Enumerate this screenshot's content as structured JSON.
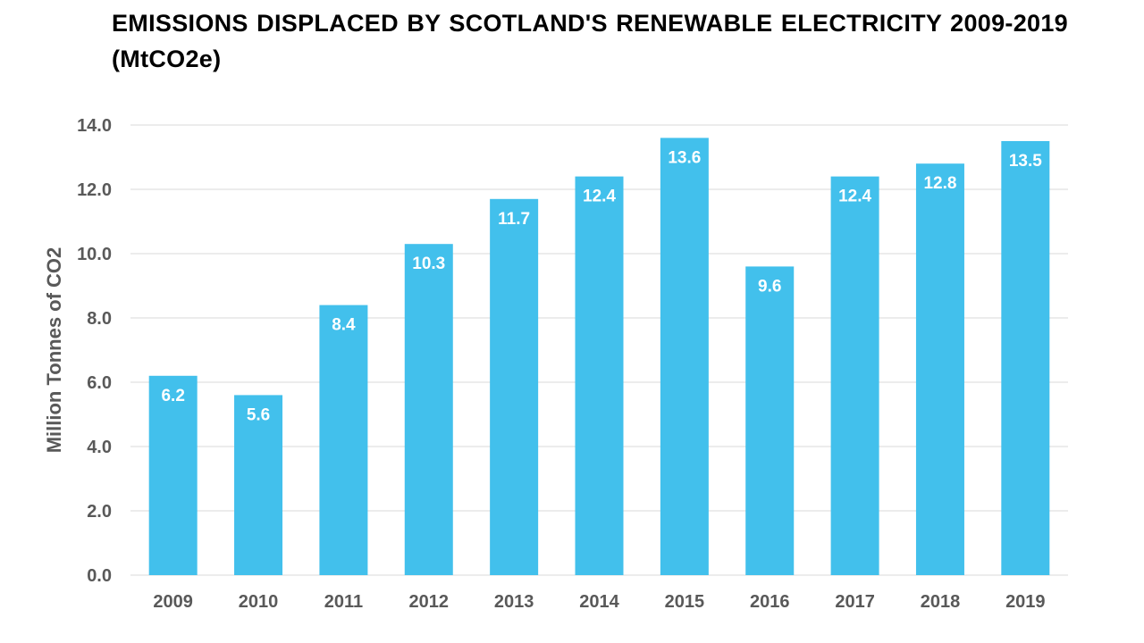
{
  "chart_data": {
    "type": "bar",
    "title": "EMISSIONS DISPLACED BY SCOTLAND'S RENEWABLE ELECTRICITY 2009-2019 (MtCO2e)",
    "xlabel": "",
    "ylabel": "Million Tonnes of CO2",
    "categories": [
      "2009",
      "2010",
      "2011",
      "2012",
      "2013",
      "2014",
      "2015",
      "2016",
      "2017",
      "2018",
      "2019"
    ],
    "values": [
      6.2,
      5.6,
      8.4,
      10.3,
      11.7,
      12.4,
      13.6,
      9.6,
      12.4,
      12.8,
      13.5
    ],
    "data_labels": [
      "6.2",
      "5.6",
      "8.4",
      "10.3",
      "11.7",
      "12.4",
      "13.6",
      "9.6",
      "12.4",
      "12.8",
      "13.5"
    ],
    "ylim": [
      0,
      14
    ],
    "yticks": [
      "0.0",
      "2.0",
      "4.0",
      "6.0",
      "8.0",
      "10.0",
      "12.0",
      "14.0"
    ],
    "grid": true,
    "legend": "none",
    "colors": {
      "bar": "#42C0EC",
      "grid": "#D9D9D9",
      "axis_text": "#595959",
      "label_text": "#FFFFFF",
      "title_text": "#000000"
    }
  }
}
